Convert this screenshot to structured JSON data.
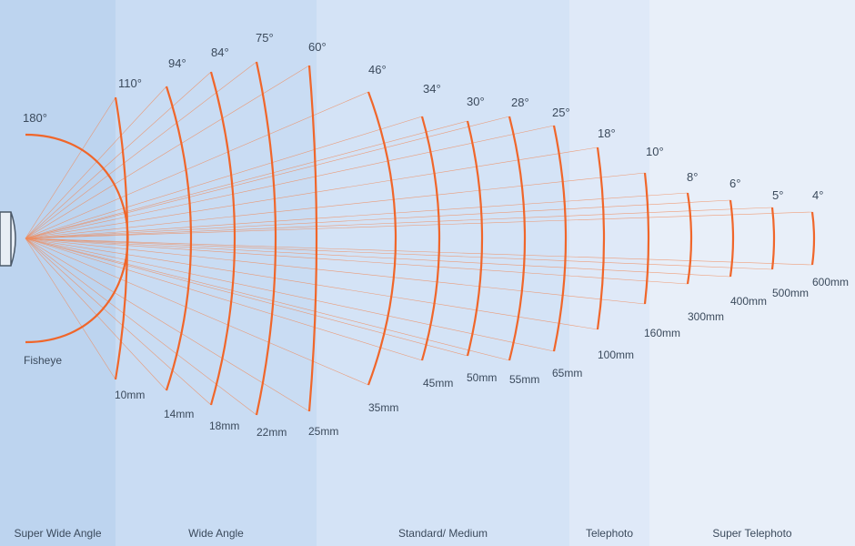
{
  "lenses": [
    {
      "angle": "180°",
      "focal": "Fisheye"
    },
    {
      "angle": "110°",
      "focal": "10mm"
    },
    {
      "angle": "94°",
      "focal": "14mm"
    },
    {
      "angle": "84°",
      "focal": "18mm"
    },
    {
      "angle": "75°",
      "focal": "22mm"
    },
    {
      "angle": "60°",
      "focal": "25mm"
    },
    {
      "angle": "46°",
      "focal": "35mm"
    },
    {
      "angle": "34°",
      "focal": "45mm"
    },
    {
      "angle": "30°",
      "focal": "50mm"
    },
    {
      "angle": "28°",
      "focal": "55mm"
    },
    {
      "angle": "25°",
      "focal": "65mm"
    },
    {
      "angle": "18°",
      "focal": "100mm"
    },
    {
      "angle": "10°",
      "focal": "160mm"
    },
    {
      "angle": "8°",
      "focal": "300mm"
    },
    {
      "angle": "6°",
      "focal": "400mm"
    },
    {
      "angle": "5°",
      "focal": "500mm"
    },
    {
      "angle": "4°",
      "focal": "600mm"
    }
  ],
  "categories": [
    "Super Wide Angle",
    "Wide Angle",
    "Standard/ Medium",
    "Telephoto",
    "Super Telephoto"
  ]
}
